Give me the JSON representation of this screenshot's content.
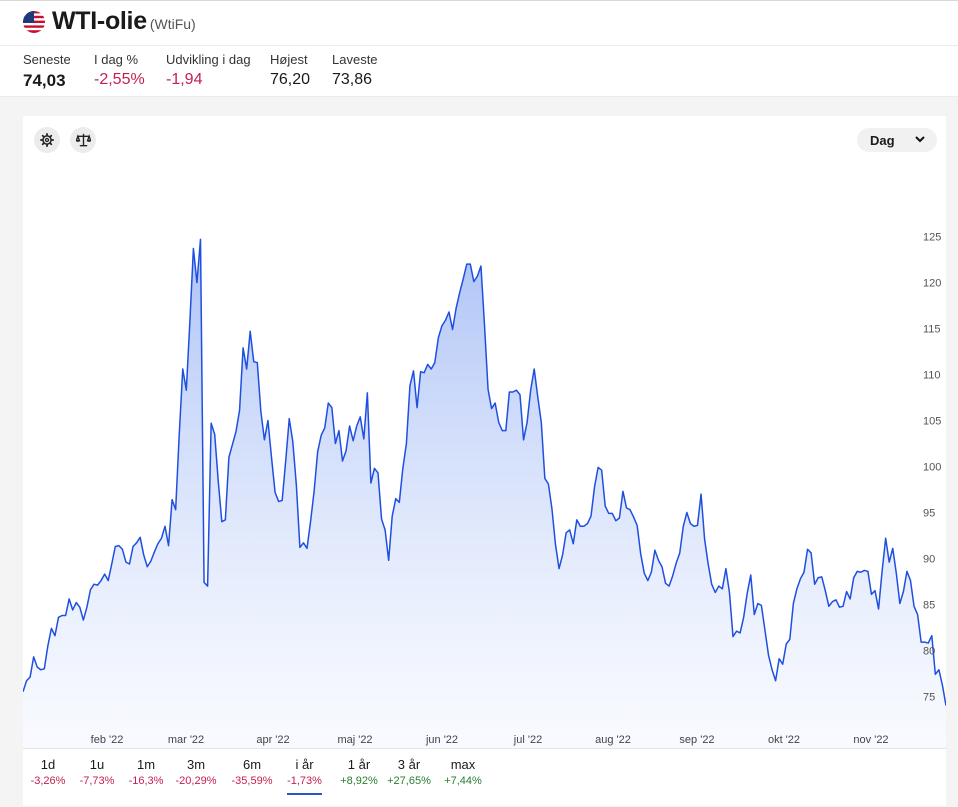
{
  "instrument": {
    "title": "WTI-olie",
    "ticker": "(WtiFu)"
  },
  "stats": [
    {
      "label": "Seneste",
      "value": "74,03",
      "tone": "bold"
    },
    {
      "label": "I dag %",
      "value": "-2,55%",
      "tone": "neg"
    },
    {
      "label": "Udvikling i dag",
      "value": "-1,94",
      "tone": "neg"
    },
    {
      "label": "Højest",
      "value": "76,20",
      "tone": "plain"
    },
    {
      "label": "Laveste",
      "value": "73,86",
      "tone": "plain"
    }
  ],
  "toolbar": {
    "period_value": "Dag"
  },
  "icons": {
    "settings": "gear-icon",
    "compare": "scale-icon",
    "dropdown": "chevron-down-icon",
    "flag": "us-flag-icon"
  },
  "colors": {
    "line": "#1f4fe0",
    "fill_top": "#a8bff5",
    "negative": "#c41f4e",
    "positive": "#2a7d2e",
    "active_tab": "#2757c8"
  },
  "chart_data": {
    "type": "area",
    "y_ticks": [
      "125",
      "120",
      "115",
      "110",
      "105",
      "100",
      "95",
      "90",
      "85",
      "80",
      "75"
    ],
    "x_tick_labels": [
      "feb '22",
      "mar '22",
      "apr '22",
      "maj '22",
      "jun '22",
      "jul '22",
      "aug '22",
      "sep '22",
      "okt '22",
      "nov '22"
    ],
    "ylim": [
      72,
      128
    ],
    "y_axis_side": "right",
    "grid": false,
    "series": [
      {
        "values": [
          75.5,
          76.7,
          77.1,
          79.3,
          78.2,
          77.9,
          78.0,
          80.5,
          82.4,
          81.6,
          83.6,
          83.8,
          83.8,
          85.6,
          84.4,
          85.2,
          84.7,
          83.3,
          84.7,
          86.6,
          87.2,
          87.1,
          87.6,
          88.3,
          87.6,
          89.4,
          91.3,
          91.4,
          91.0,
          89.6,
          89.4,
          91.3,
          91.7,
          92.3,
          90.4,
          89.1,
          89.7,
          90.7,
          91.6,
          92.2,
          93.5,
          91.4,
          96.4,
          95.3,
          103.4,
          110.6,
          108.3,
          115.7,
          123.7,
          120.0,
          124.7,
          87.4,
          87.0,
          104.7,
          103.5,
          98.4,
          94.0,
          94.2,
          101.0,
          102.4,
          103.8,
          106.1,
          112.9,
          110.6,
          114.7,
          111.4,
          111.3,
          106.0,
          102.9,
          105.0,
          101.0,
          97.2,
          96.2,
          96.3,
          100.6,
          105.2,
          102.7,
          98.0,
          91.2,
          91.7,
          91.1,
          94.0,
          97.3,
          101.6,
          103.4,
          104.2,
          106.9,
          106.4,
          102.5,
          103.9,
          100.6,
          101.7,
          104.4,
          102.8,
          104.4,
          105.4,
          103.0,
          108.0,
          98.2,
          99.8,
          99.3,
          94.3,
          93.1,
          89.8,
          94.6,
          96.5,
          96.1,
          99.8,
          102.5,
          108.8,
          110.4,
          106.4,
          110.3,
          110.2,
          111.1,
          110.6,
          111.3,
          114.0,
          115.3,
          115.9,
          116.8,
          114.9,
          117.2,
          118.9,
          120.4,
          122.0,
          122.0,
          120.1,
          120.7,
          121.8,
          115.4,
          108.4,
          106.3,
          106.9,
          104.8,
          103.9,
          103.9,
          108.1,
          108.1,
          108.3,
          107.8,
          102.9,
          104.8,
          108.3,
          110.6,
          107.6,
          104.8,
          98.7,
          98.1,
          95.4,
          91.5,
          88.9,
          90.4,
          92.8,
          93.1,
          91.6,
          94.2,
          93.5,
          93.5,
          93.8,
          94.6,
          97.8,
          99.9,
          99.6,
          95.7,
          94.9,
          94.9,
          94.1,
          94.4,
          97.3,
          95.5,
          95.3,
          94.5,
          93.6,
          90.5,
          88.4,
          87.6,
          88.5,
          90.9,
          89.8,
          89.1,
          87.3,
          87.0,
          88.1,
          89.5,
          90.6,
          93.5,
          95.0,
          93.8,
          93.5,
          93.6,
          97.0,
          92.1,
          89.4,
          87.2,
          86.3,
          87.0,
          86.7,
          88.9,
          86.3,
          81.5,
          82.1,
          81.9,
          83.6,
          86.2,
          88.2,
          83.9,
          85.1,
          84.9,
          82.2,
          79.5,
          77.9,
          76.7,
          79.1,
          78.5,
          80.7,
          81.2,
          85.1,
          86.7,
          87.8,
          88.5,
          91.0,
          90.6,
          87.2,
          87.9,
          88.0,
          86.5,
          84.8,
          85.3,
          85.5,
          84.7,
          84.8,
          86.4,
          85.6,
          87.9,
          88.6,
          88.5,
          88.7,
          88.6,
          86.1,
          86.5,
          84.5,
          88.6,
          92.2,
          89.6,
          91.1,
          88.4,
          85.1,
          86.4,
          88.6,
          87.6,
          84.8,
          83.9,
          80.9,
          80.9,
          80.8,
          81.6,
          77.4,
          77.9,
          76.2,
          74.0
        ]
      }
    ]
  },
  "range_tabs": [
    {
      "label": "1d",
      "change": "-3,26%",
      "tone": "neg"
    },
    {
      "label": "1u",
      "change": "-7,73%",
      "tone": "neg"
    },
    {
      "label": "1m",
      "change": "-16,3%",
      "tone": "neg"
    },
    {
      "label": "3m",
      "change": "-20,29%",
      "tone": "neg"
    },
    {
      "label": "6m",
      "change": "-35,59%",
      "tone": "neg"
    },
    {
      "label": "i år",
      "change": "-1,73%",
      "tone": "neg",
      "active": true
    },
    {
      "label": "1 år",
      "change": "+8,92%",
      "tone": "pos"
    },
    {
      "label": "3 år",
      "change": "+27,65%",
      "tone": "pos"
    },
    {
      "label": "max",
      "change": "+7,44%",
      "tone": "pos"
    }
  ]
}
